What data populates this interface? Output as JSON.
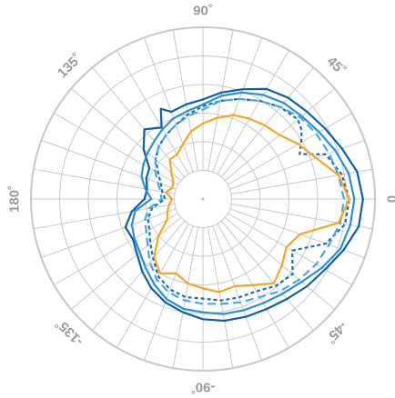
{
  "chart_data": {
    "type": "line",
    "polar": true,
    "r_range": [
      0,
      1
    ],
    "ring_count": 6,
    "spoke_step_deg": 10,
    "grid": true,
    "angle_labels": [
      {
        "angle": 90,
        "text": "90˚"
      },
      {
        "angle": 45,
        "text": "45˚"
      },
      {
        "angle": 0,
        "text": "0"
      },
      {
        "angle": -45,
        "text": "-45˚"
      },
      {
        "angle": -90,
        "text": "-90˚"
      },
      {
        "angle": -135,
        "text": "-135˚"
      },
      {
        "angle": 180,
        "text": "180˚"
      },
      {
        "angle": 135,
        "text": "135˚"
      }
    ],
    "series": [
      {
        "color": "#0d5fa8",
        "dash": "solid",
        "points": [
          [
            0,
            0.93
          ],
          [
            10,
            0.91
          ],
          [
            20,
            0.86
          ],
          [
            30,
            0.82
          ],
          [
            40,
            0.79
          ],
          [
            50,
            0.77
          ],
          [
            60,
            0.74
          ],
          [
            70,
            0.68
          ],
          [
            80,
            0.63
          ],
          [
            90,
            0.58
          ],
          [
            100,
            0.56
          ],
          [
            110,
            0.54
          ],
          [
            115,
            0.58
          ],
          [
            120,
            0.48
          ],
          [
            130,
            0.53
          ],
          [
            140,
            0.45
          ],
          [
            150,
            0.36
          ],
          [
            160,
            0.35
          ],
          [
            170,
            0.33
          ],
          [
            180,
            0.34
          ],
          [
            190,
            0.42
          ],
          [
            200,
            0.48
          ],
          [
            210,
            0.47
          ],
          [
            220,
            0.5
          ],
          [
            230,
            0.55
          ],
          [
            240,
            0.6
          ],
          [
            250,
            0.64
          ],
          [
            260,
            0.67
          ],
          [
            270,
            0.7
          ],
          [
            280,
            0.72
          ],
          [
            290,
            0.73
          ],
          [
            300,
            0.74
          ],
          [
            310,
            0.76
          ],
          [
            320,
            0.79
          ],
          [
            330,
            0.82
          ],
          [
            340,
            0.87
          ],
          [
            350,
            0.92
          ]
        ]
      },
      {
        "color": "#2a8fd6",
        "dash": "solid",
        "points": [
          [
            0,
            0.88
          ],
          [
            10,
            0.86
          ],
          [
            20,
            0.82
          ],
          [
            30,
            0.78
          ],
          [
            40,
            0.75
          ],
          [
            50,
            0.73
          ],
          [
            60,
            0.7
          ],
          [
            70,
            0.66
          ],
          [
            80,
            0.61
          ],
          [
            90,
            0.55
          ],
          [
            100,
            0.52
          ],
          [
            110,
            0.5
          ],
          [
            120,
            0.47
          ],
          [
            130,
            0.44
          ],
          [
            140,
            0.42
          ],
          [
            150,
            0.4
          ],
          [
            160,
            0.38
          ],
          [
            170,
            0.34
          ],
          [
            180,
            0.3
          ],
          [
            190,
            0.4
          ],
          [
            200,
            0.44
          ],
          [
            210,
            0.46
          ],
          [
            220,
            0.48
          ],
          [
            230,
            0.52
          ],
          [
            240,
            0.57
          ],
          [
            250,
            0.62
          ],
          [
            260,
            0.65
          ],
          [
            270,
            0.66
          ],
          [
            280,
            0.68
          ],
          [
            290,
            0.69
          ],
          [
            300,
            0.7
          ],
          [
            310,
            0.72
          ],
          [
            320,
            0.75
          ],
          [
            330,
            0.8
          ],
          [
            340,
            0.85
          ],
          [
            350,
            0.87
          ]
        ]
      },
      {
        "color": "#1a6fb8",
        "dash": "dotted",
        "points": [
          [
            0,
            0.85
          ],
          [
            10,
            0.82
          ],
          [
            20,
            0.76
          ],
          [
            25,
            0.62
          ],
          [
            30,
            0.66
          ],
          [
            35,
            0.7
          ],
          [
            40,
            0.72
          ],
          [
            50,
            0.7
          ],
          [
            60,
            0.66
          ],
          [
            70,
            0.62
          ],
          [
            80,
            0.58
          ],
          [
            90,
            0.54
          ],
          [
            100,
            0.5
          ],
          [
            110,
            0.46
          ],
          [
            120,
            0.43
          ],
          [
            130,
            0.4
          ],
          [
            140,
            0.36
          ],
          [
            150,
            0.3
          ],
          [
            160,
            0.26
          ],
          [
            170,
            0.24
          ],
          [
            180,
            0.22
          ],
          [
            190,
            0.3
          ],
          [
            200,
            0.34
          ],
          [
            210,
            0.36
          ],
          [
            220,
            0.4
          ],
          [
            230,
            0.45
          ],
          [
            240,
            0.52
          ],
          [
            250,
            0.56
          ],
          [
            260,
            0.58
          ],
          [
            270,
            0.58
          ],
          [
            280,
            0.6
          ],
          [
            290,
            0.61
          ],
          [
            300,
            0.62
          ],
          [
            310,
            0.66
          ],
          [
            320,
            0.68
          ],
          [
            330,
            0.6
          ],
          [
            340,
            0.76
          ],
          [
            350,
            0.84
          ]
        ]
      },
      {
        "color": "#4aa8e0",
        "dash": "dashed",
        "points": [
          [
            0,
            0.82
          ],
          [
            10,
            0.8
          ],
          [
            20,
            0.78
          ],
          [
            30,
            0.76
          ],
          [
            40,
            0.74
          ],
          [
            50,
            0.7
          ],
          [
            60,
            0.66
          ],
          [
            70,
            0.62
          ],
          [
            80,
            0.58
          ],
          [
            90,
            0.52
          ],
          [
            100,
            0.49
          ],
          [
            110,
            0.46
          ],
          [
            120,
            0.43
          ],
          [
            130,
            0.4
          ],
          [
            140,
            0.36
          ],
          [
            150,
            0.32
          ],
          [
            160,
            0.28
          ],
          [
            170,
            0.25
          ],
          [
            180,
            0.24
          ],
          [
            190,
            0.32
          ],
          [
            200,
            0.36
          ],
          [
            210,
            0.38
          ],
          [
            220,
            0.42
          ],
          [
            230,
            0.48
          ],
          [
            240,
            0.54
          ],
          [
            250,
            0.58
          ],
          [
            260,
            0.6
          ],
          [
            270,
            0.61
          ],
          [
            280,
            0.62
          ],
          [
            290,
            0.64
          ],
          [
            300,
            0.66
          ],
          [
            310,
            0.7
          ],
          [
            320,
            0.73
          ],
          [
            330,
            0.76
          ],
          [
            340,
            0.78
          ],
          [
            350,
            0.81
          ]
        ]
      },
      {
        "color": "#f5a623",
        "dash": "solid",
        "points": [
          [
            0,
            0.85
          ],
          [
            10,
            0.8
          ],
          [
            20,
            0.7
          ],
          [
            30,
            0.64
          ],
          [
            40,
            0.58
          ],
          [
            50,
            0.56
          ],
          [
            60,
            0.54
          ],
          [
            70,
            0.52
          ],
          [
            80,
            0.48
          ],
          [
            90,
            0.44
          ],
          [
            100,
            0.4
          ],
          [
            110,
            0.34
          ],
          [
            120,
            0.3
          ],
          [
            130,
            0.3
          ],
          [
            140,
            0.24
          ],
          [
            150,
            0.2
          ],
          [
            160,
            0.19
          ],
          [
            170,
            0.22
          ],
          [
            180,
            0.18
          ],
          [
            190,
            0.2
          ],
          [
            200,
            0.22
          ],
          [
            210,
            0.24
          ],
          [
            220,
            0.34
          ],
          [
            230,
            0.44
          ],
          [
            240,
            0.5
          ],
          [
            250,
            0.46
          ],
          [
            260,
            0.5
          ],
          [
            270,
            0.52
          ],
          [
            280,
            0.55
          ],
          [
            290,
            0.54
          ],
          [
            300,
            0.58
          ],
          [
            310,
            0.64
          ],
          [
            320,
            0.6
          ],
          [
            330,
            0.56
          ],
          [
            340,
            0.6
          ],
          [
            350,
            0.8
          ]
        ]
      }
    ]
  }
}
